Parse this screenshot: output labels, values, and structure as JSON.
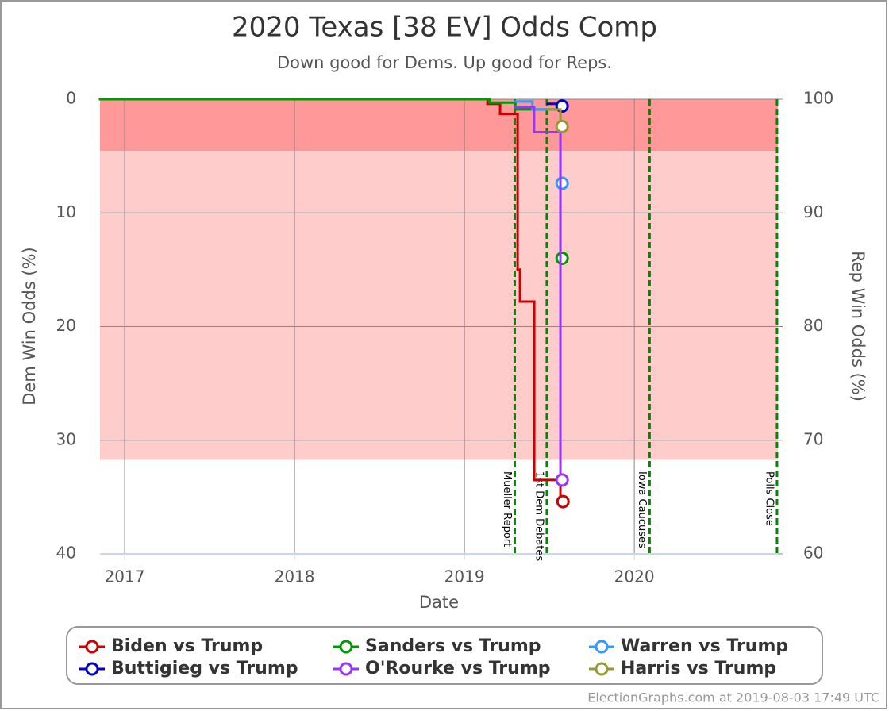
{
  "chart_data": {
    "type": "step",
    "title": "2020 Texas [38 EV] Odds Comp",
    "subtitle": "Down good for Dems. Up good for Reps.",
    "x_label": "Date",
    "y_label": "Dem Win Odds (%)",
    "y2_label": "Rep Win Odds (%)",
    "xlim": [
      2016.855,
      2020.845
    ],
    "xticks": [
      2017,
      2018,
      2019,
      2020
    ],
    "ylim": [
      0,
      40
    ],
    "y_reversed": true,
    "yticks": [
      0,
      10,
      20,
      30,
      40
    ],
    "y2lim": [
      60,
      100
    ],
    "y2ticks": [
      60,
      70,
      80,
      90,
      100
    ],
    "grid": true,
    "bands": [
      {
        "from": 0,
        "to": 4.55,
        "color": "#ff9999"
      },
      {
        "from": 4.55,
        "to": 31.73,
        "color": "#ffcccc"
      }
    ],
    "events": [
      {
        "x": 2019.296,
        "label": "Mueller Report"
      },
      {
        "x": 2019.485,
        "label": "1st Dem Debates"
      },
      {
        "x": 2020.09,
        "label": "Iowa Caucuses"
      },
      {
        "x": 2020.84,
        "label": "Polls Close"
      }
    ],
    "series": [
      {
        "name": "Biden vs Trump",
        "color": "#cc0000",
        "x": [
          2016.855,
          2019.136,
          2019.21,
          2019.313,
          2019.327,
          2019.411,
          2019.565,
          2019.58
        ],
        "values": [
          0,
          0.4,
          1.3,
          15.0,
          17.8,
          33.5,
          35.4,
          35.4
        ]
      },
      {
        "name": "Sanders vs Trump",
        "color": "#009900",
        "x": [
          2016.855,
          2019.15,
          2019.3,
          2019.565,
          2019.575
        ],
        "values": [
          0,
          0.3,
          0.9,
          14.0,
          14.0
        ]
      },
      {
        "name": "Warren vs Trump",
        "color": "#3399ff",
        "x": [
          2019.3,
          2019.4,
          2019.565,
          2019.575
        ],
        "values": [
          0.2,
          0.9,
          7.4,
          7.4
        ]
      },
      {
        "name": "Buttigieg vs Trump",
        "color": "#0000cc",
        "x": [
          2019.49,
          2019.575
        ],
        "values": [
          0.4,
          0.6
        ]
      },
      {
        "name": "O'Rourke vs Trump",
        "color": "#9933ff",
        "x": [
          2019.3,
          2019.41,
          2019.565,
          2019.575
        ],
        "values": [
          0.7,
          2.9,
          33.5,
          33.5
        ]
      },
      {
        "name": "Harris vs Trump",
        "color": "#999933",
        "x": [
          2019.49,
          2019.565,
          2019.575
        ],
        "values": [
          0.9,
          2.4,
          2.4
        ]
      }
    ]
  },
  "footer": "ElectionGraphs.com at 2019-08-03 17:49 UTC"
}
